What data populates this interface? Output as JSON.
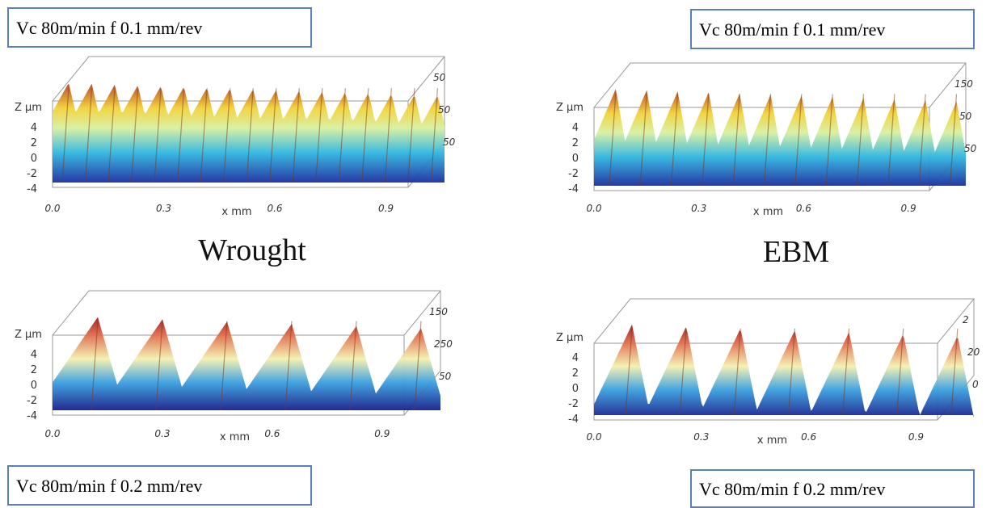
{
  "panels": [
    {
      "label": "Vc 80m/min f 0.1 mm/rev",
      "z_label": "Z µm",
      "z_ticks": [
        "4",
        "2",
        "0",
        "-2",
        "-4"
      ],
      "x_ticks": [
        "0.0",
        "0.3",
        "0.6",
        "0.9"
      ],
      "x_label": "x mm",
      "y_ticks": [
        "50",
        "50",
        "50"
      ]
    },
    {
      "label": "Vc 80m/min f 0.1 mm/rev",
      "z_label": "Z µm",
      "z_ticks": [
        "4",
        "2",
        "0",
        "-2",
        "-4"
      ],
      "x_ticks": [
        "0.0",
        "0.3",
        "0.6",
        "0.9"
      ],
      "x_label": "x mm",
      "y_ticks": [
        "150",
        "50",
        "50"
      ]
    },
    {
      "label": "Vc 80m/min f 0.2 mm/rev",
      "z_label": "Z µm",
      "z_ticks": [
        "4",
        "2",
        "0",
        "-2",
        "-4"
      ],
      "x_ticks": [
        "0.0",
        "0.3",
        "0.6",
        "0.9"
      ],
      "x_label": "x mm",
      "y_ticks": [
        "150",
        "250",
        "50"
      ]
    },
    {
      "label": "Vc 80m/min f 0.2 mm/rev",
      "z_label": "Z µm",
      "z_ticks": [
        "4",
        "2",
        "0",
        "-2",
        "-4"
      ],
      "x_ticks": [
        "0.0",
        "0.3",
        "0.6",
        "0.9"
      ],
      "x_label": "x mm",
      "y_ticks": [
        "2",
        "20",
        "0"
      ]
    }
  ],
  "captions": [
    "Wrought",
    "EBM"
  ]
}
